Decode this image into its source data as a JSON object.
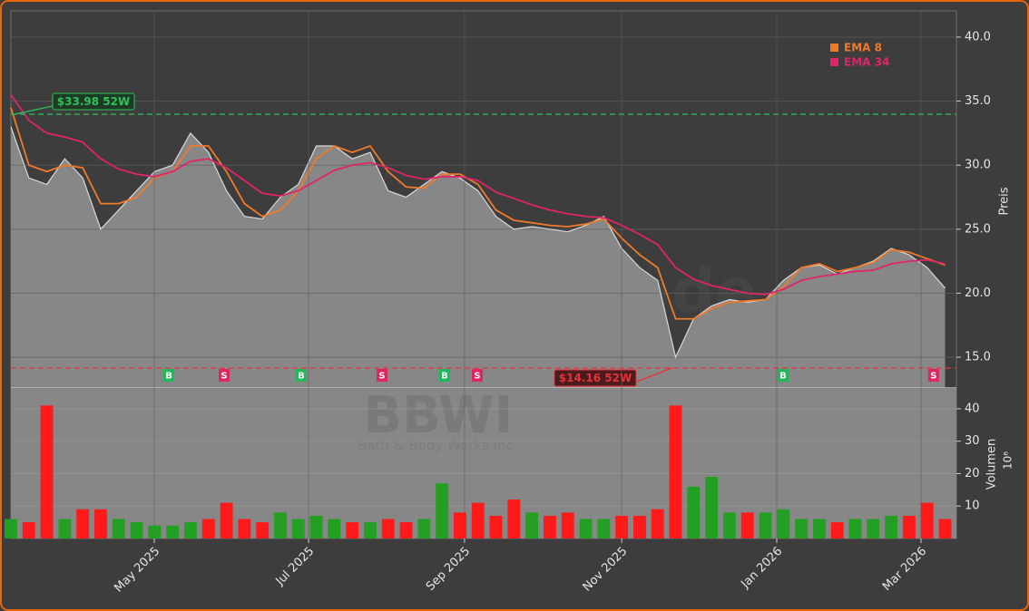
{
  "chart_data": [
    {
      "type": "line",
      "ylabel": "Preis",
      "watermark": "forexsignale.trade",
      "values": [
        33,
        29,
        28.5,
        30.5,
        29,
        25,
        26.5,
        28,
        29.5,
        30,
        32.5,
        31,
        28,
        26,
        25.8,
        27.5,
        28.5,
        31.5,
        31.5,
        30.5,
        31,
        28,
        27.5,
        28.5,
        29.5,
        29,
        28,
        26,
        25,
        25.2,
        25,
        24.8,
        25.3,
        26,
        23.5,
        22,
        21,
        15,
        18,
        19,
        19.5,
        19.3,
        19.5,
        21,
        22,
        22.2,
        21.5,
        22,
        22.5,
        23.5,
        23,
        22,
        20.4
      ],
      "color": "#d8d8d8",
      "area_color": "#878787",
      "series": [
        {
          "name": "EMA 8",
          "color": "#f07a2a",
          "values": [
            34.5,
            30,
            29.5,
            30,
            29.8,
            27,
            27,
            27.5,
            29,
            29.5,
            31.5,
            31.5,
            29.5,
            27,
            26,
            26.5,
            28,
            30.5,
            31.5,
            31,
            31.5,
            29.5,
            28.3,
            28.2,
            29.3,
            29.3,
            28.5,
            26.5,
            25.7,
            25.5,
            25.3,
            25.2,
            25.4,
            25.8,
            24.3,
            23,
            22,
            18,
            18,
            18.8,
            19.3,
            19.4,
            19.5,
            20.5,
            22,
            22.3,
            21.7,
            22,
            22.4,
            23.4,
            23.2,
            22.7,
            22.2
          ]
        },
        {
          "name": "EMA 34",
          "color": "#e0246a",
          "values": [
            35.5,
            33.5,
            32.5,
            32.2,
            31.8,
            30.5,
            29.7,
            29.3,
            29.1,
            29.5,
            30.3,
            30.5,
            29.8,
            28.8,
            27.8,
            27.6,
            28,
            28.8,
            29.6,
            30,
            30.2,
            29.8,
            29.2,
            28.9,
            29.1,
            29.1,
            28.8,
            27.9,
            27.4,
            26.9,
            26.5,
            26.2,
            26,
            25.9,
            25.3,
            24.6,
            23.8,
            22,
            21.1,
            20.6,
            20.3,
            20,
            19.9,
            20.3,
            21,
            21.3,
            21.5,
            21.7,
            21.8,
            22.3,
            22.5,
            22.6,
            22.3
          ]
        }
      ],
      "hlines": [
        {
          "value": 33.98,
          "label": "$33.98 52W",
          "color": "#2ec25a"
        },
        {
          "value": 14.16,
          "label": "$14.16 52W",
          "color": "#e8323a"
        }
      ],
      "signals": [
        {
          "x": 8.79,
          "label": "B",
          "color": "#1fb85a"
        },
        {
          "x": 11.87,
          "label": "S",
          "color": "#e0245e"
        },
        {
          "x": 16.16,
          "label": "B",
          "color": "#1fb85a"
        },
        {
          "x": 20.66,
          "label": "S",
          "color": "#e0245e"
        },
        {
          "x": 24.14,
          "label": "B",
          "color": "#1fb85a"
        },
        {
          "x": 25.96,
          "label": "S",
          "color": "#e0245e"
        },
        {
          "x": 42.98,
          "label": "B",
          "color": "#1fb85a"
        },
        {
          "x": 51.36,
          "label": "S",
          "color": "#e0245e"
        }
      ],
      "xlim": [
        0,
        52.63
      ],
      "ylim": [
        12.6,
        42.05
      ],
      "yticks": [
        {
          "value": 15,
          "label": "15.0"
        },
        {
          "value": 20,
          "label": "20.0"
        },
        {
          "value": 25,
          "label": "25.0"
        },
        {
          "value": 30,
          "label": "30.0"
        },
        {
          "value": 35,
          "label": "35.0"
        },
        {
          "value": 40,
          "label": "40.0"
        }
      ],
      "grid": true
    },
    {
      "type": "bar",
      "title": "BBWI",
      "subtitle": "Bath & Body Works Inc",
      "ylabel": "Volumen",
      "yunit": "10⁶",
      "values": [
        6,
        5,
        41,
        6,
        9,
        9,
        6,
        5,
        4,
        4,
        5,
        6,
        11,
        6,
        5,
        8,
        6,
        7,
        6,
        5,
        5,
        6,
        5,
        6,
        17,
        8,
        11,
        7,
        12,
        8,
        7,
        8,
        6,
        6,
        7,
        7,
        9,
        41,
        16,
        19,
        8,
        8,
        8,
        9,
        6,
        6,
        5,
        6,
        6,
        7,
        7,
        11,
        6
      ],
      "up_color": "#23a023",
      "down_color": "#ff1a1a",
      "xlim": [
        0,
        52.63
      ],
      "ylim": [
        0,
        46.4
      ],
      "yticks": [
        10,
        20,
        30,
        40
      ],
      "xticks": [
        {
          "value": 7.98,
          "label": "May 2025"
        },
        {
          "value": 16.57,
          "label": "Jul 2025"
        },
        {
          "value": 25.25,
          "label": "Sep 2025"
        },
        {
          "value": 34.0,
          "label": "Nov 2025"
        },
        {
          "value": 42.63,
          "label": "Jan 2026"
        },
        {
          "value": 50.66,
          "label": "Mar 2026"
        }
      ],
      "grid": true
    }
  ]
}
